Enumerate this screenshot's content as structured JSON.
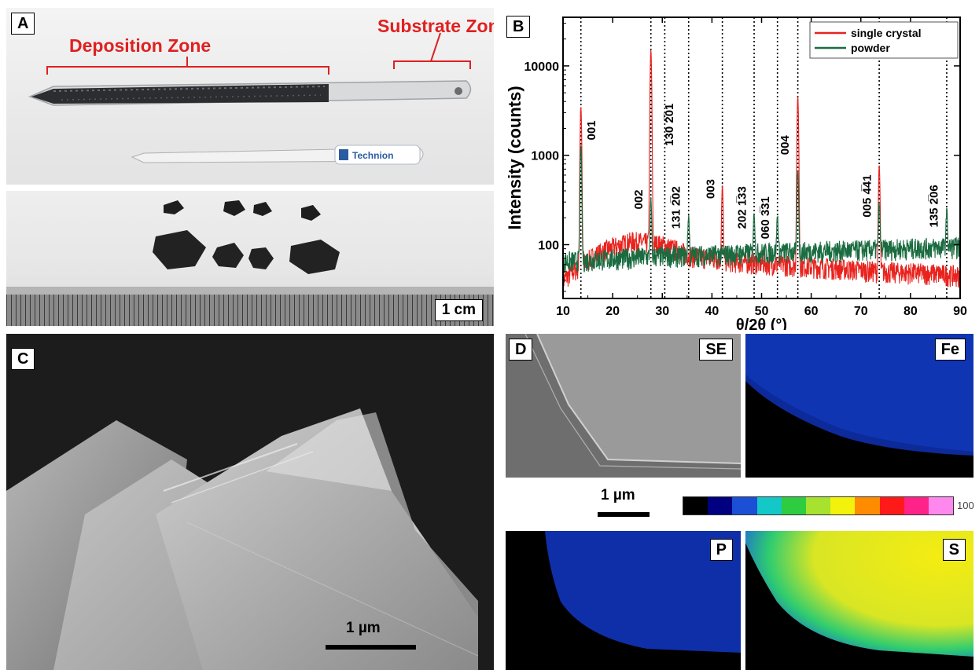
{
  "panels": {
    "a": {
      "label": "A",
      "deposition_zone": "Deposition Zone",
      "substrate_zone": "Substrate Zone",
      "pen_text": "Technion",
      "scale": "1 cm"
    },
    "b": {
      "label": "B"
    },
    "c": {
      "label": "C",
      "scale": "1 µm"
    },
    "d": {
      "label": "D",
      "maps": [
        "SE",
        "Fe",
        "P",
        "S"
      ],
      "scale": "1 µm",
      "colorbar_max": "100",
      "colorbar_colors": [
        "#000000",
        "#000080",
        "#1a4fd6",
        "#14c8c8",
        "#2ecc40",
        "#a6e22e",
        "#f2f20a",
        "#ff8c00",
        "#ff1a1a",
        "#ff2288",
        "#ff88ee"
      ]
    }
  },
  "chart_data": {
    "type": "line",
    "xlabel": "θ/2θ (°)",
    "ylabel": "Intensity (counts)",
    "xlim": [
      10,
      90
    ],
    "ylim": [
      25,
      35000
    ],
    "yscale": "log",
    "x_ticks": [
      "10",
      "20",
      "30",
      "40",
      "50",
      "60",
      "70",
      "80",
      "90"
    ],
    "y_ticks": [
      {
        "value": 100,
        "label": "100"
      },
      {
        "value": 1000,
        "label": "1000"
      },
      {
        "value": 10000,
        "label": "10000"
      }
    ],
    "legend_position": "top-right",
    "series": [
      {
        "name": "single crystal",
        "color": "#e8231e",
        "baseline": [
          [
            10,
            40
          ],
          [
            13,
            55
          ],
          [
            18,
            85
          ],
          [
            24,
            110
          ],
          [
            30,
            100
          ],
          [
            36,
            75
          ],
          [
            45,
            65
          ],
          [
            55,
            60
          ],
          [
            65,
            55
          ],
          [
            75,
            50
          ],
          [
            85,
            48
          ],
          [
            90,
            45
          ]
        ],
        "peaks": [
          [
            13.6,
            3400
          ],
          [
            27.7,
            15000
          ],
          [
            42.1,
            380
          ],
          [
            57.3,
            4500
          ],
          [
            73.7,
            720
          ]
        ]
      },
      {
        "name": "powder",
        "color": "#1a6b40",
        "baseline": [
          [
            10,
            65
          ],
          [
            20,
            70
          ],
          [
            30,
            75
          ],
          [
            40,
            78
          ],
          [
            50,
            82
          ],
          [
            60,
            85
          ],
          [
            70,
            88
          ],
          [
            80,
            92
          ],
          [
            90,
            95
          ]
        ],
        "peaks": [
          [
            13.6,
            1200
          ],
          [
            27.7,
            250
          ],
          [
            35.3,
            140
          ],
          [
            48.5,
            150
          ],
          [
            53.2,
            130
          ],
          [
            57.3,
            600
          ],
          [
            73.7,
            200
          ],
          [
            87.3,
            150
          ]
        ]
      }
    ],
    "reflections": [
      13.6,
      27.7,
      30.5,
      35.3,
      42.1,
      48.5,
      53.2,
      57.3,
      73.7,
      87.3
    ],
    "peak_labels": [
      {
        "text": "001",
        "x": 16.5,
        "y": 1900
      },
      {
        "text": "002",
        "x": 26.0,
        "y": 320
      },
      {
        "text": "130 2̅01",
        "x": 32.2,
        "y": 2200
      },
      {
        "text": "131 2̅02",
        "x": 33.5,
        "y": 260
      },
      {
        "text": "003",
        "x": 40.5,
        "y": 420
      },
      {
        "text": "202 1̅33",
        "x": 46.8,
        "y": 260
      },
      {
        "text": "060 3̅31",
        "x": 51.5,
        "y": 200
      },
      {
        "text": "004",
        "x": 55.5,
        "y": 1300
      },
      {
        "text": "005 4̅41",
        "x": 72.0,
        "y": 350
      },
      {
        "text": "135 2̅06",
        "x": 85.5,
        "y": 270
      }
    ]
  }
}
